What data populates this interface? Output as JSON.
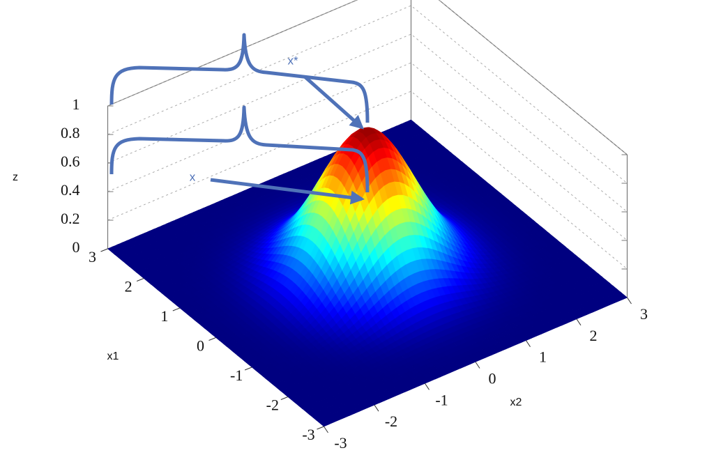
{
  "chart_data": {
    "type": "surface3d",
    "xlabel": "x1",
    "ylabel": "x2",
    "zlabel": "z",
    "xlim": [
      -3,
      3
    ],
    "ylim": [
      -3,
      3
    ],
    "zlim": [
      0,
      1
    ],
    "xticks": [
      -3,
      -2,
      -1,
      0,
      1,
      2,
      3
    ],
    "yticks": [
      -3,
      -2,
      -1,
      0,
      1,
      2,
      3
    ],
    "zticks": [
      0,
      0.2,
      0.4,
      0.6,
      0.8,
      1
    ],
    "surface": {
      "peak": 1,
      "sigma": 0.8
    },
    "colormap": "jet",
    "grid": true,
    "annotations": [
      {
        "text": "x*",
        "z": 1
      },
      {
        "text": "x",
        "z": 0.5
      }
    ],
    "annotation_color": "#4f72b8"
  }
}
